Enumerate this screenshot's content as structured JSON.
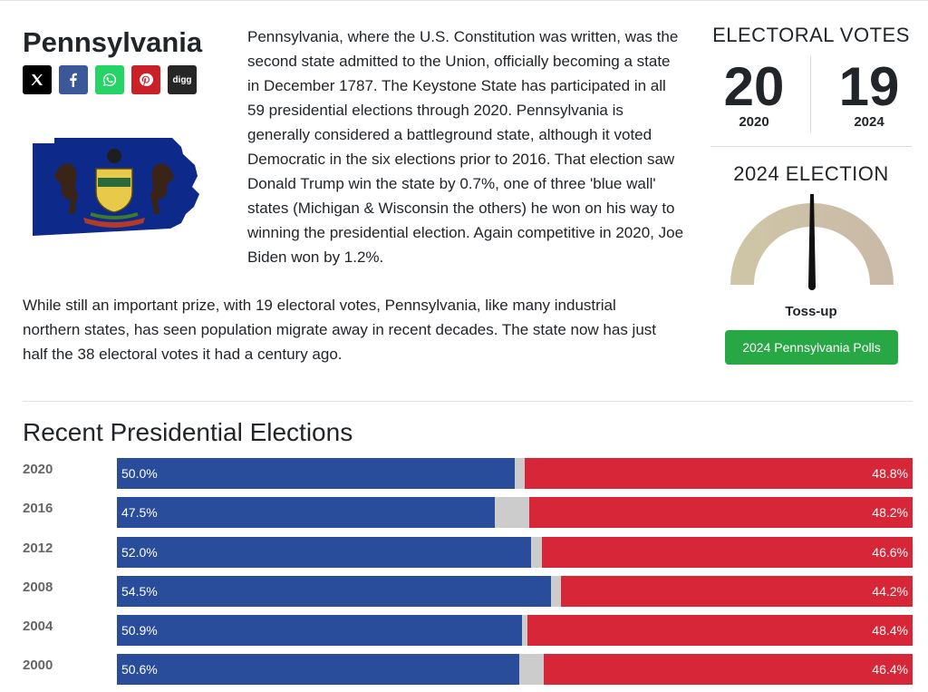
{
  "state": {
    "name": "Pennsylvania",
    "intro": "Pennsylvania, where the U.S. Constitution was written, was the second state admitted to the Union, officially becoming a state in December 1787. The Keystone State has participated in all 59 presidential elections through 2020. Pennsylvania is generally considered a battleground state, although it voted Democratic in the six elections prior to 2016. That election saw Donald Trump win the state by 0.7%, one of three 'blue wall' states (Michigan & Wisconsin the others) he won on his way to winning the presidential election. Again competitive in 2020, Joe Biden won by 1.2%.",
    "paragraph2": "While still an important prize, with 19 electoral votes, Pennsylvania, like many industrial northern states, has seen population migrate away in recent decades. The state now has just half the 38 electoral votes it had a century ago."
  },
  "share": [
    {
      "name": "x",
      "label": "𝕏",
      "color": "#000000"
    },
    {
      "name": "facebook",
      "label": "f",
      "color": "#3b5998"
    },
    {
      "name": "whatsapp",
      "label": "",
      "color": "#25d366"
    },
    {
      "name": "pinterest",
      "label": "",
      "color": "#cb2027"
    },
    {
      "name": "digg",
      "label": "digg",
      "color": "#262626"
    }
  ],
  "electoral_votes": {
    "title": "ELECTORAL VOTES",
    "left": {
      "votes": "20",
      "year": "2020"
    },
    "right": {
      "votes": "19",
      "year": "2024"
    }
  },
  "election_2024": {
    "title": "2024 ELECTION",
    "rating": "Toss-up",
    "button_label": "2024 Pennsylvania Polls",
    "gauge_colors": [
      "#cfc6a6",
      "#c9b9a7"
    ]
  },
  "recent": {
    "title": "Recent Presidential Elections",
    "colors": {
      "dem": "#2a4d9b",
      "rep": "#d62637",
      "other": "#cccccc"
    },
    "rows": [
      {
        "year": "2020",
        "dem": 50.0,
        "rep": 48.8,
        "dem_label": "50.0%",
        "rep_label": "48.8%"
      },
      {
        "year": "2016",
        "dem": 47.5,
        "rep": 48.2,
        "dem_label": "47.5%",
        "rep_label": "48.2%"
      },
      {
        "year": "2012",
        "dem": 52.0,
        "rep": 46.6,
        "dem_label": "52.0%",
        "rep_label": "46.6%"
      },
      {
        "year": "2008",
        "dem": 54.5,
        "rep": 44.2,
        "dem_label": "54.5%",
        "rep_label": "44.2%"
      },
      {
        "year": "2004",
        "dem": 50.9,
        "rep": 48.4,
        "dem_label": "50.9%",
        "rep_label": "48.4%"
      },
      {
        "year": "2000",
        "dem": 50.6,
        "rep": 46.4,
        "dem_label": "50.6%",
        "rep_label": "46.4%"
      }
    ]
  }
}
